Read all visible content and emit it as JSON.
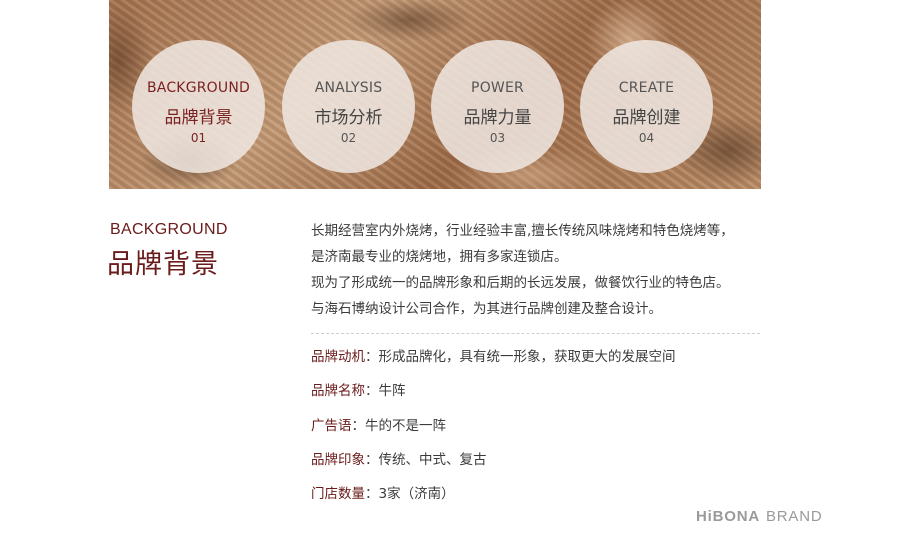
{
  "hero": {
    "circles": [
      {
        "en": "BACKGROUND",
        "cn": "品牌背景",
        "num": "01",
        "active": true
      },
      {
        "en": "ANALYSIS",
        "cn": "市场分析",
        "num": "02",
        "active": false
      },
      {
        "en": "POWER",
        "cn": "品牌力量",
        "num": "03",
        "active": false
      },
      {
        "en": "CREATE",
        "cn": "品牌创建",
        "num": "04",
        "active": false
      }
    ]
  },
  "section": {
    "title_en": "BACKGROUND",
    "title_cn": "品牌背景"
  },
  "intro": {
    "lines": [
      "长期经营室内外烧烤，行业经验丰富,擅长传统风味烧烤和特色烧烤等，",
      "是济南最专业的烧烤地，拥有多家连锁店。",
      "现为了形成统一的品牌形象和后期的长远发展，做餐饮行业的特色店。",
      "与海石博纳设计公司合作，为其进行品牌创建及整合设计。"
    ]
  },
  "facts": [
    {
      "key": "品牌动机",
      "value": "形成品牌化，具有统一形象，获取更大的发展空间"
    },
    {
      "key": "品牌名称",
      "value": "牛阵"
    },
    {
      "key": "广告语",
      "value": "牛的不是一阵"
    },
    {
      "key": "品牌印象",
      "value": "传统、中式、复古"
    },
    {
      "key": "门店数量",
      "value": "3家（济南）"
    }
  ],
  "separator": "：",
  "brand": {
    "part1": "HiBONA",
    "part2": "BRAND"
  },
  "colors": {
    "accent": "#6a1b1b",
    "text": "#3b3b3b",
    "brand_gray": "#9a9a9a"
  }
}
